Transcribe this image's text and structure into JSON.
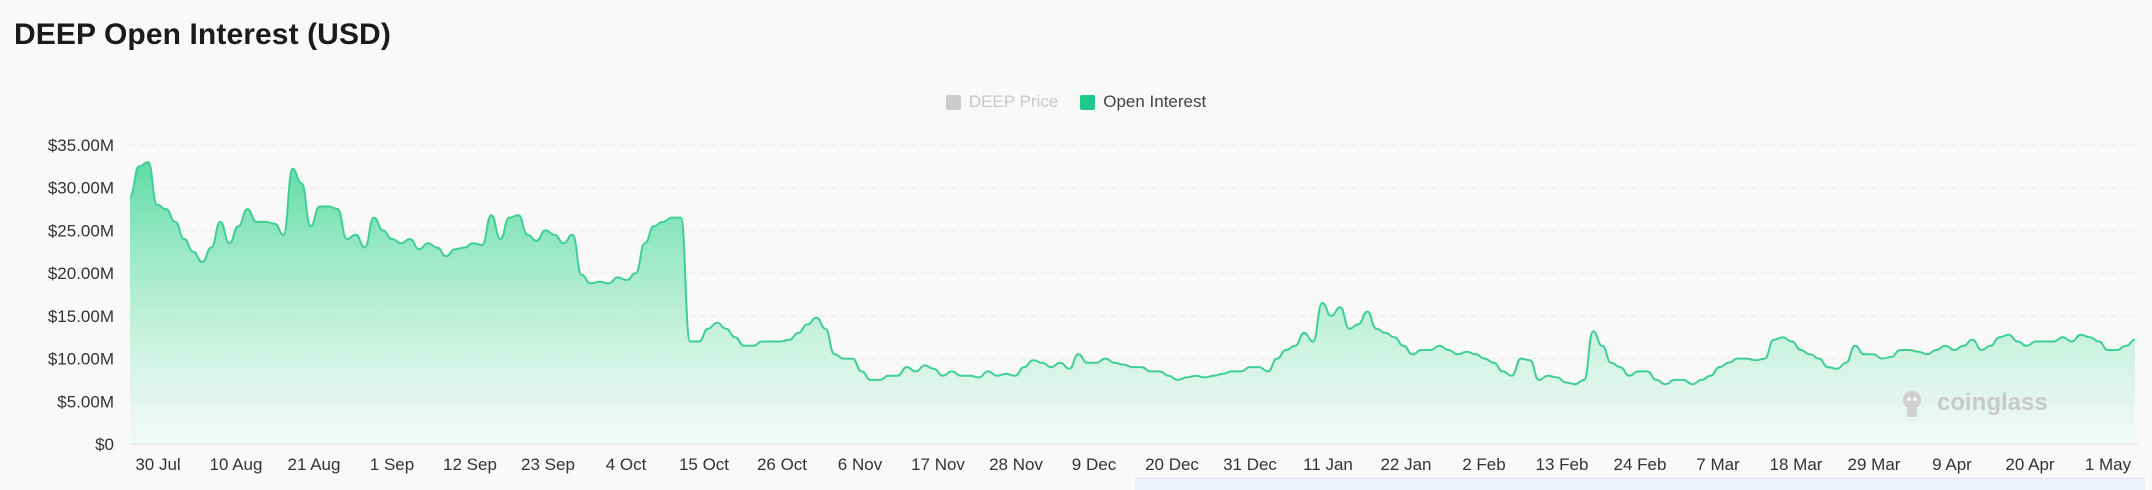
{
  "title": "DEEP Open Interest (USD)",
  "legend": [
    {
      "label": "DEEP Price",
      "color": "#cccccc",
      "active": false
    },
    {
      "label": "Open Interest",
      "color": "#1ec98a",
      "active": true
    }
  ],
  "watermark": "coinglass",
  "colors": {
    "line": "#3fcf95",
    "fill_top": "#5fdca8",
    "fill_bottom": "#eefaf4",
    "grid": "#e6e6e6"
  },
  "chart_data": {
    "type": "area",
    "title": "DEEP Open Interest (USD)",
    "xlabel": "",
    "ylabel": "",
    "ylim": [
      0,
      35
    ],
    "y_unit": "M USD",
    "y_ticks": [
      0,
      5,
      10,
      15,
      20,
      25,
      30,
      35
    ],
    "y_tick_labels": [
      "$0",
      "$5.00M",
      "$10.00M",
      "$15.00M",
      "$20.00M",
      "$25.00M",
      "$30.00M",
      "$35.00M"
    ],
    "x_tick_labels": [
      "30 Jul",
      "10 Aug",
      "21 Aug",
      "1 Sep",
      "12 Sep",
      "23 Sep",
      "4 Oct",
      "15 Oct",
      "26 Oct",
      "6 Nov",
      "17 Nov",
      "28 Nov",
      "9 Dec",
      "20 Dec",
      "31 Dec",
      "11 Jan",
      "22 Jan",
      "2 Feb",
      "13 Feb",
      "24 Feb",
      "7 Mar",
      "18 Mar",
      "29 Mar",
      "9 Apr",
      "20 Apr",
      "1 May"
    ],
    "grid": true,
    "legend_position": "top-center",
    "series": [
      {
        "name": "Open Interest",
        "values": [
          29.0,
          32.5,
          33.0,
          28.0,
          27.5,
          26.0,
          24.0,
          22.5,
          21.3,
          23.0,
          26.0,
          23.5,
          25.5,
          27.5,
          26.0,
          26.0,
          25.8,
          24.5,
          32.2,
          30.5,
          25.5,
          27.8,
          27.8,
          27.5,
          24.0,
          24.5,
          23.0,
          26.5,
          25.0,
          24.0,
          23.5,
          24.0,
          22.8,
          23.5,
          23.0,
          22.0,
          22.8,
          23.0,
          23.5,
          23.3,
          26.8,
          24.0,
          26.5,
          26.8,
          24.5,
          23.8,
          25.0,
          24.5,
          23.5,
          24.5,
          19.8,
          18.8,
          19.0,
          18.8,
          19.5,
          19.2,
          20.0,
          23.5,
          25.5,
          26.0,
          26.5,
          26.5,
          12.0,
          12.0,
          13.5,
          14.2,
          13.5,
          12.5,
          11.5,
          11.5,
          12.0,
          12.0,
          12.0,
          12.2,
          13.0,
          14.0,
          14.8,
          13.5,
          10.5,
          10.0,
          10.0,
          8.5,
          7.5,
          7.5,
          8.0,
          8.0,
          9.0,
          8.5,
          9.2,
          8.8,
          8.0,
          8.5,
          8.0,
          8.0,
          7.8,
          8.5,
          8.0,
          8.2,
          8.0,
          9.0,
          9.8,
          9.5,
          9.0,
          9.5,
          8.8,
          10.5,
          9.5,
          9.5,
          10.0,
          9.5,
          9.3,
          9.0,
          9.0,
          8.5,
          8.5,
          8.0,
          7.5,
          7.8,
          8.0,
          7.8,
          8.0,
          8.2,
          8.5,
          8.5,
          9.0,
          9.0,
          8.5,
          10.0,
          11.0,
          11.5,
          13.0,
          12.0,
          16.5,
          15.0,
          16.0,
          13.5,
          14.0,
          15.5,
          13.5,
          13.0,
          12.5,
          11.5,
          10.5,
          11.0,
          11.0,
          11.5,
          11.0,
          10.5,
          10.8,
          10.5,
          10.0,
          9.5,
          8.5,
          8.0,
          10.0,
          9.8,
          7.5,
          8.0,
          7.8,
          7.2,
          7.0,
          7.5,
          13.2,
          11.5,
          9.5,
          9.0,
          8.0,
          8.5,
          8.5,
          7.5,
          7.0,
          7.5,
          7.5,
          7.0,
          7.5,
          8.0,
          9.0,
          9.5,
          10.0,
          10.0,
          9.8,
          10.0,
          12.2,
          12.5,
          12.0,
          11.0,
          10.5,
          10.0,
          9.0,
          8.8,
          9.5,
          11.5,
          10.5,
          10.5,
          10.0,
          10.2,
          11.0,
          11.0,
          10.8,
          10.5,
          11.0,
          11.5,
          11.0,
          11.5,
          12.2,
          11.0,
          11.5,
          12.5,
          12.8,
          12.0,
          11.5,
          12.0,
          12.0,
          12.0,
          12.5,
          12.0,
          12.8,
          12.5,
          12.0,
          11.0,
          11.0,
          11.5,
          12.2
        ]
      }
    ]
  }
}
